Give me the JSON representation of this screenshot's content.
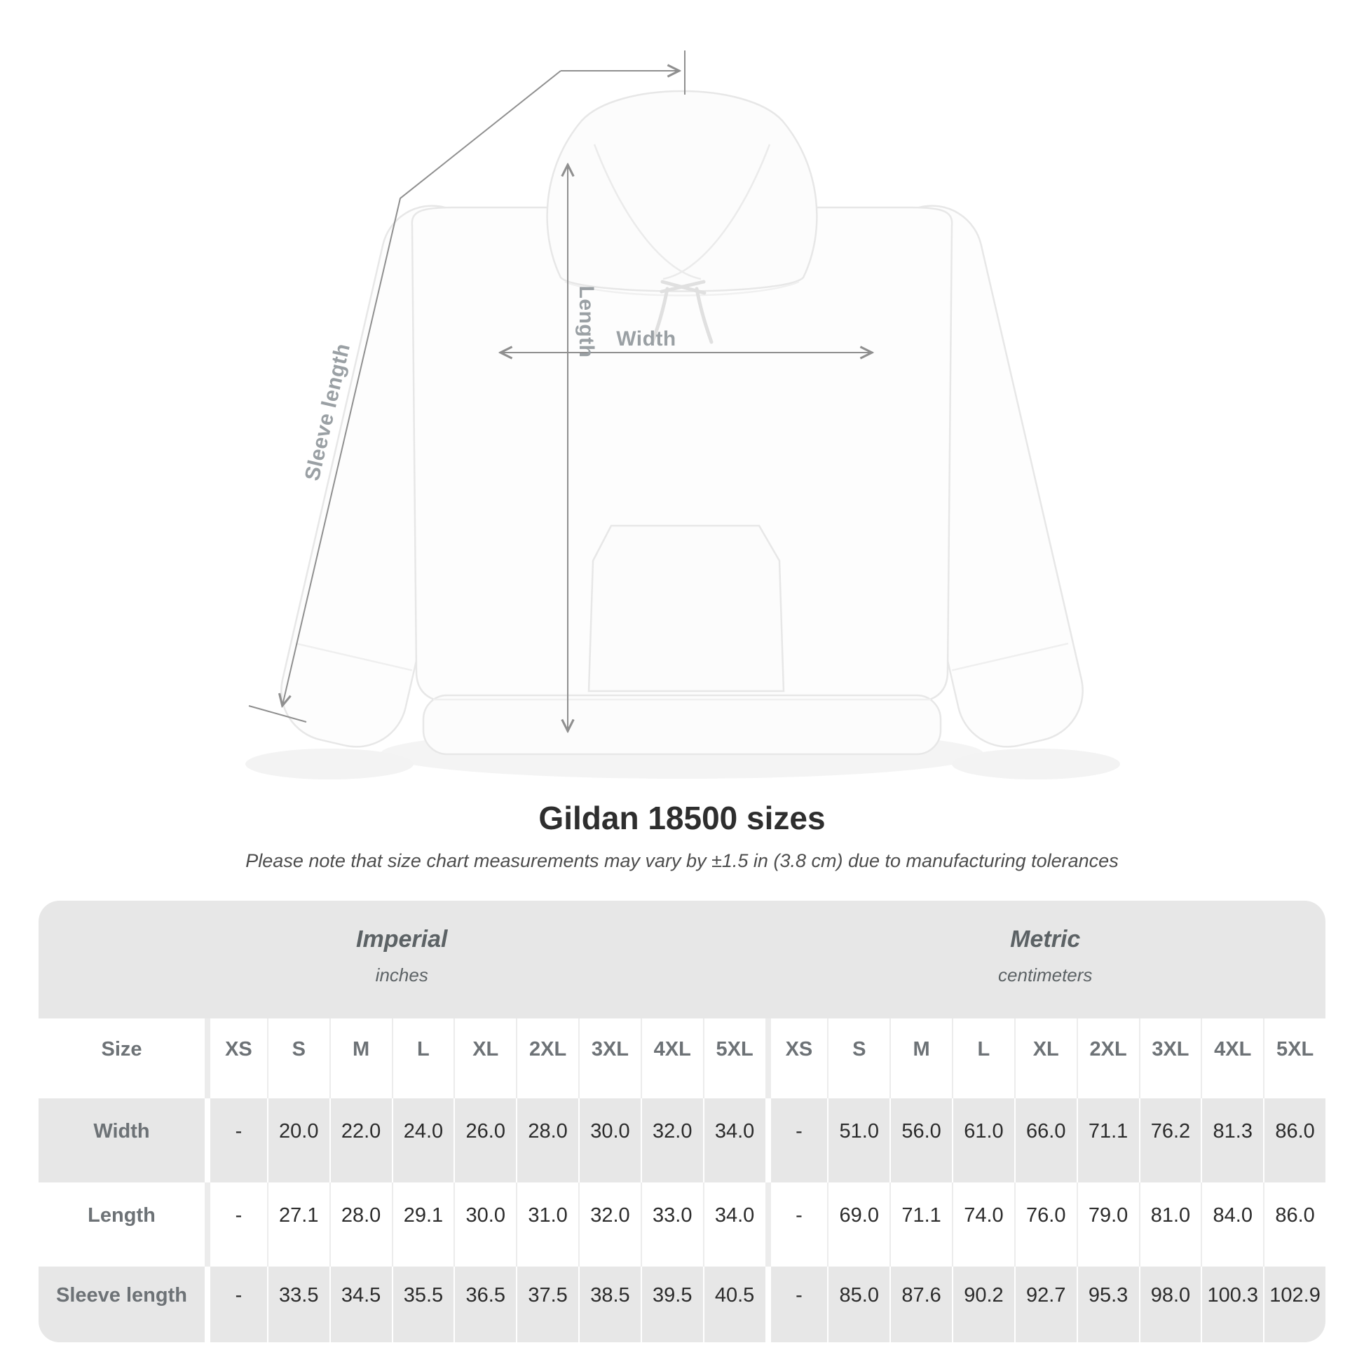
{
  "title": "Gildan 18500 sizes",
  "subtitle": "Please note that size chart measurements may vary by ±1.5 in (3.8 cm) due to manufacturing tolerances",
  "diagram": {
    "length_label": "Length",
    "width_label": "Width",
    "sleeve_label": "Sleeve length"
  },
  "chart_data": {
    "type": "table",
    "title": "Gildan 18500 sizes",
    "size_header": "Size",
    "groups": [
      {
        "name": "Imperial",
        "unit": "inches"
      },
      {
        "name": "Metric",
        "unit": "centimeters"
      }
    ],
    "sizes": [
      "XS",
      "S",
      "M",
      "L",
      "XL",
      "2XL",
      "3XL",
      "4XL",
      "5XL"
    ],
    "rows": [
      {
        "label": "Width",
        "imperial": [
          "-",
          "20.0",
          "22.0",
          "24.0",
          "26.0",
          "28.0",
          "30.0",
          "32.0",
          "34.0"
        ],
        "metric": [
          "-",
          "51.0",
          "56.0",
          "61.0",
          "66.0",
          "71.1",
          "76.2",
          "81.3",
          "86.0"
        ]
      },
      {
        "label": "Length",
        "imperial": [
          "-",
          "27.1",
          "28.0",
          "29.1",
          "30.0",
          "31.0",
          "32.0",
          "33.0",
          "34.0"
        ],
        "metric": [
          "-",
          "69.0",
          "71.1",
          "74.0",
          "76.0",
          "79.0",
          "81.0",
          "84.0",
          "86.0"
        ]
      },
      {
        "label": "Sleeve length",
        "imperial": [
          "-",
          "33.5",
          "34.5",
          "35.5",
          "36.5",
          "37.5",
          "38.5",
          "39.5",
          "40.5"
        ],
        "metric": [
          "-",
          "85.0",
          "87.6",
          "90.2",
          "92.7",
          "95.3",
          "98.0",
          "100.3",
          "102.9"
        ]
      }
    ]
  },
  "colors": {
    "table_band": "#e7e7e7",
    "row_gray": "#e7e7e7",
    "value_text": "#2b2b2b",
    "header_text": "#6d7276",
    "dimension_line": "#8f8f8f",
    "dimension_label": "#9aa0a4",
    "title_text": "#2e2e2e"
  }
}
